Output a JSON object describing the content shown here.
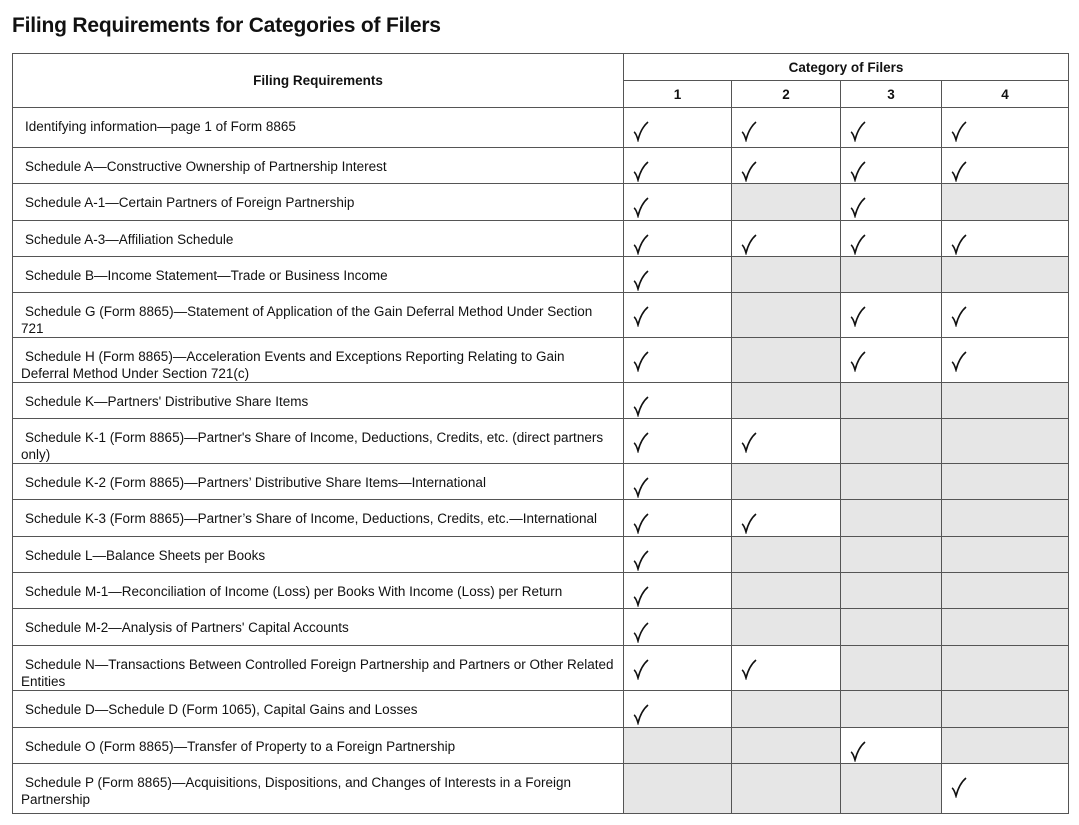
{
  "title": "Filing Requirements for Categories of Filers",
  "table": {
    "header": {
      "requirement": "Filing Requirements",
      "group": "Category of Filers",
      "columns": [
        "1",
        "2",
        "3",
        "4"
      ]
    },
    "rows": [
      {
        "label": "Identifying information—page 1 of Form 8865",
        "checks": [
          true,
          true,
          true,
          true
        ]
      },
      {
        "label": "Schedule A—Constructive Ownership of Partnership Interest",
        "checks": [
          true,
          true,
          true,
          true
        ]
      },
      {
        "label": "Schedule A-1—Certain Partners of Foreign Partnership",
        "checks": [
          true,
          false,
          true,
          false
        ]
      },
      {
        "label": "Schedule A-3—Affiliation Schedule",
        "checks": [
          true,
          true,
          true,
          true
        ]
      },
      {
        "label": "Schedule B—Income Statement—Trade or Business Income",
        "checks": [
          true,
          false,
          false,
          false
        ]
      },
      {
        "label": "Schedule G (Form 8865)—Statement of Application of the Gain Deferral Method Under Section 721",
        "checks": [
          true,
          false,
          true,
          true
        ]
      },
      {
        "label": "Schedule H (Form 8865)—Acceleration Events and Exceptions Reporting Relating to Gain Deferral Method Under Section 721(c)",
        "checks": [
          true,
          false,
          true,
          true
        ]
      },
      {
        "label": "Schedule K—Partners' Distributive Share Items",
        "checks": [
          true,
          false,
          false,
          false
        ]
      },
      {
        "label": "Schedule K-1 (Form 8865)—Partner's Share of Income, Deductions, Credits, etc. (direct partners only)",
        "checks": [
          true,
          true,
          false,
          false
        ]
      },
      {
        "label": "Schedule K-2 (Form 8865)—Partners’ Distributive Share Items—International",
        "checks": [
          true,
          false,
          false,
          false
        ]
      },
      {
        "label": "Schedule K-3 (Form 8865)—Partner’s Share of Income, Deductions, Credits, etc.—International",
        "checks": [
          true,
          true,
          false,
          false
        ]
      },
      {
        "label": "Schedule L—Balance Sheets per Books",
        "checks": [
          true,
          false,
          false,
          false
        ]
      },
      {
        "label": "Schedule M-1—Reconciliation of Income (Loss) per Books With Income (Loss) per Return",
        "checks": [
          true,
          false,
          false,
          false
        ]
      },
      {
        "label": "Schedule M-2—Analysis of Partners' Capital Accounts",
        "checks": [
          true,
          false,
          false,
          false
        ]
      },
      {
        "label": "Schedule N—Transactions Between Controlled Foreign Partnership and Partners or Other Related Entities",
        "checks": [
          true,
          true,
          false,
          false
        ]
      },
      {
        "label": "Schedule D—Schedule D (Form 1065), Capital Gains and Losses",
        "checks": [
          true,
          false,
          false,
          false
        ]
      },
      {
        "label": "Schedule O (Form 8865)—Transfer of Property to a Foreign Partnership",
        "checks": [
          false,
          false,
          true,
          false
        ]
      },
      {
        "label": "Schedule P (Form 8865)—Acquisitions, Dispositions, and Changes of Interests in a Foreign Partnership",
        "checks": [
          false,
          false,
          false,
          true
        ]
      }
    ]
  }
}
